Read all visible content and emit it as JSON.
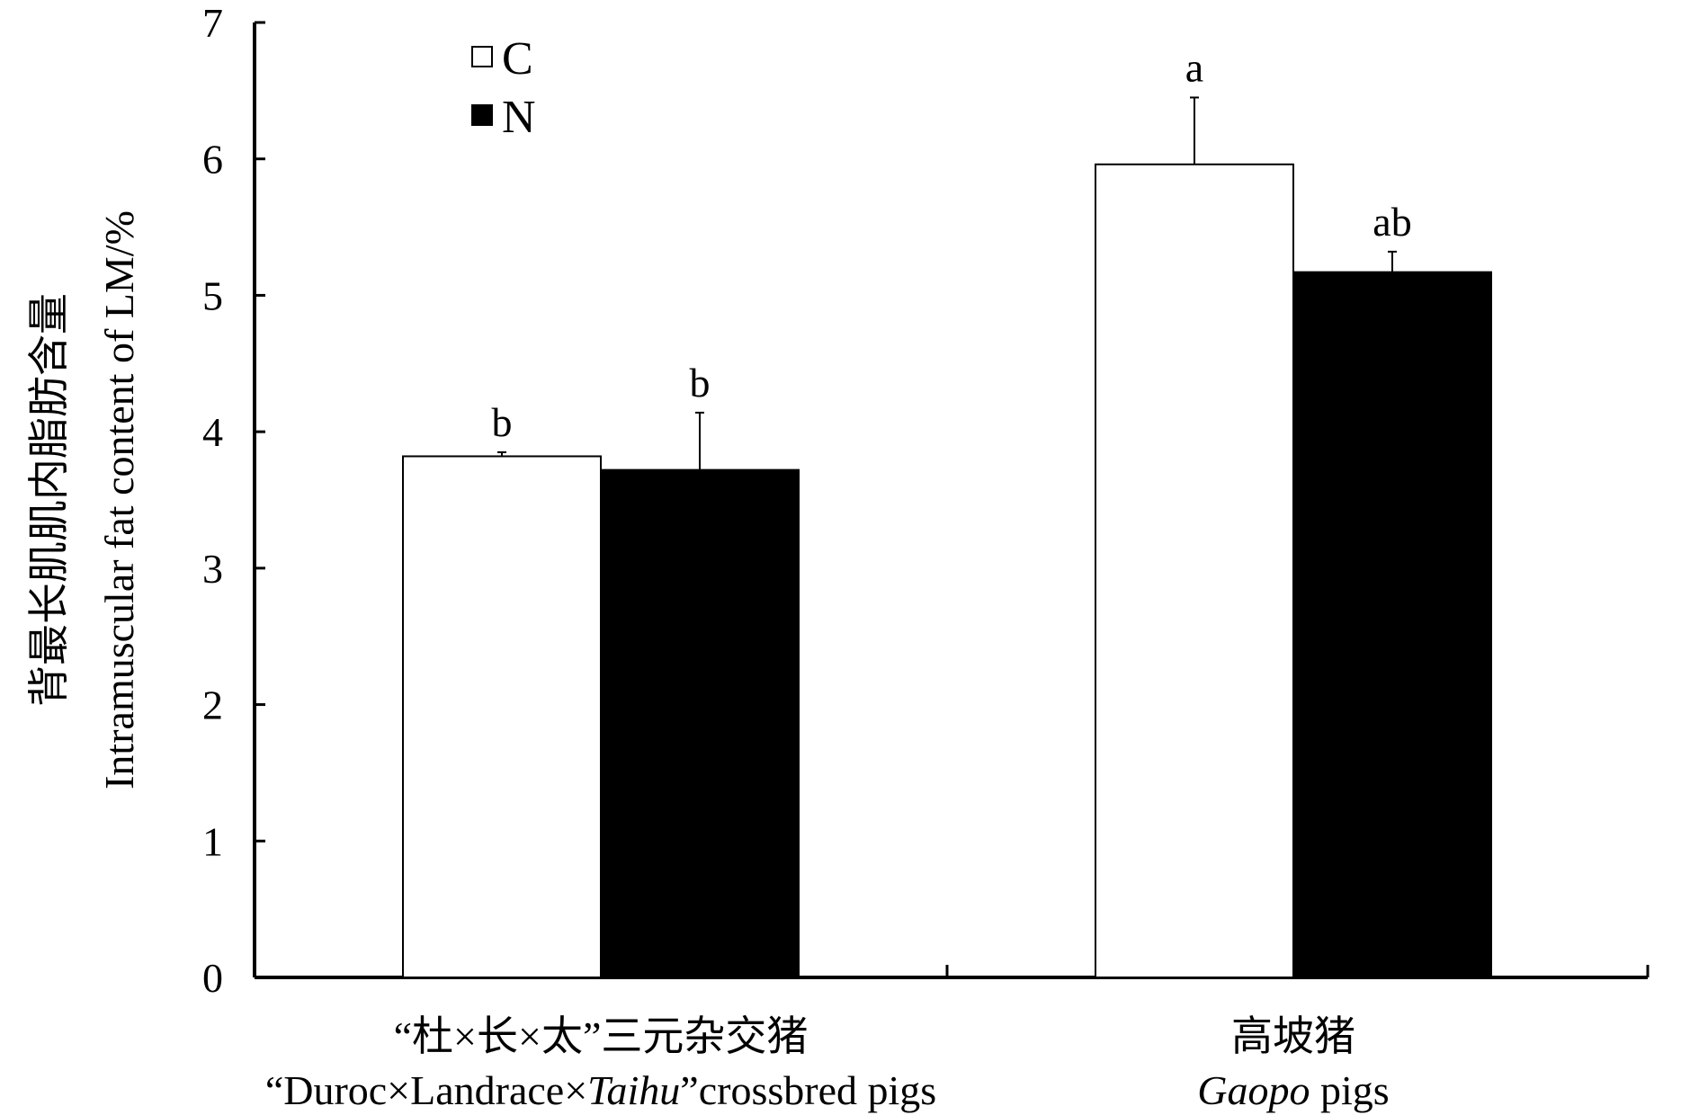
{
  "chart_data": {
    "type": "bar",
    "ylabel_zh": "背最长肌肌内脂肪含量",
    "ylabel_en": "Intramuscular fat content of LM/%",
    "ylim": [
      0,
      7
    ],
    "yticks": [
      "0",
      "1",
      "2",
      "3",
      "4",
      "5",
      "6",
      "7"
    ],
    "categories": [
      {
        "zh": "“杜×长×太”三元杂交猪",
        "en_before": "“Duroc×Landrace×",
        "en_italic": "Taihu",
        "en_after": "”crossbred pigs"
      },
      {
        "zh": "高坡猪",
        "en_before": "",
        "en_italic": "Gaopo",
        "en_after": " pigs"
      }
    ],
    "series": [
      {
        "name": "C",
        "color": "#ffffff",
        "values": [
          3.82,
          5.96
        ],
        "errors": [
          0.03,
          0.49
        ],
        "labels": [
          "b",
          "a"
        ]
      },
      {
        "name": "N",
        "color": "#000000",
        "values": [
          3.72,
          5.17
        ],
        "errors": [
          0.42,
          0.15
        ],
        "labels": [
          "b",
          "ab"
        ]
      }
    ],
    "legend_position": "top-left",
    "grid": false
  }
}
